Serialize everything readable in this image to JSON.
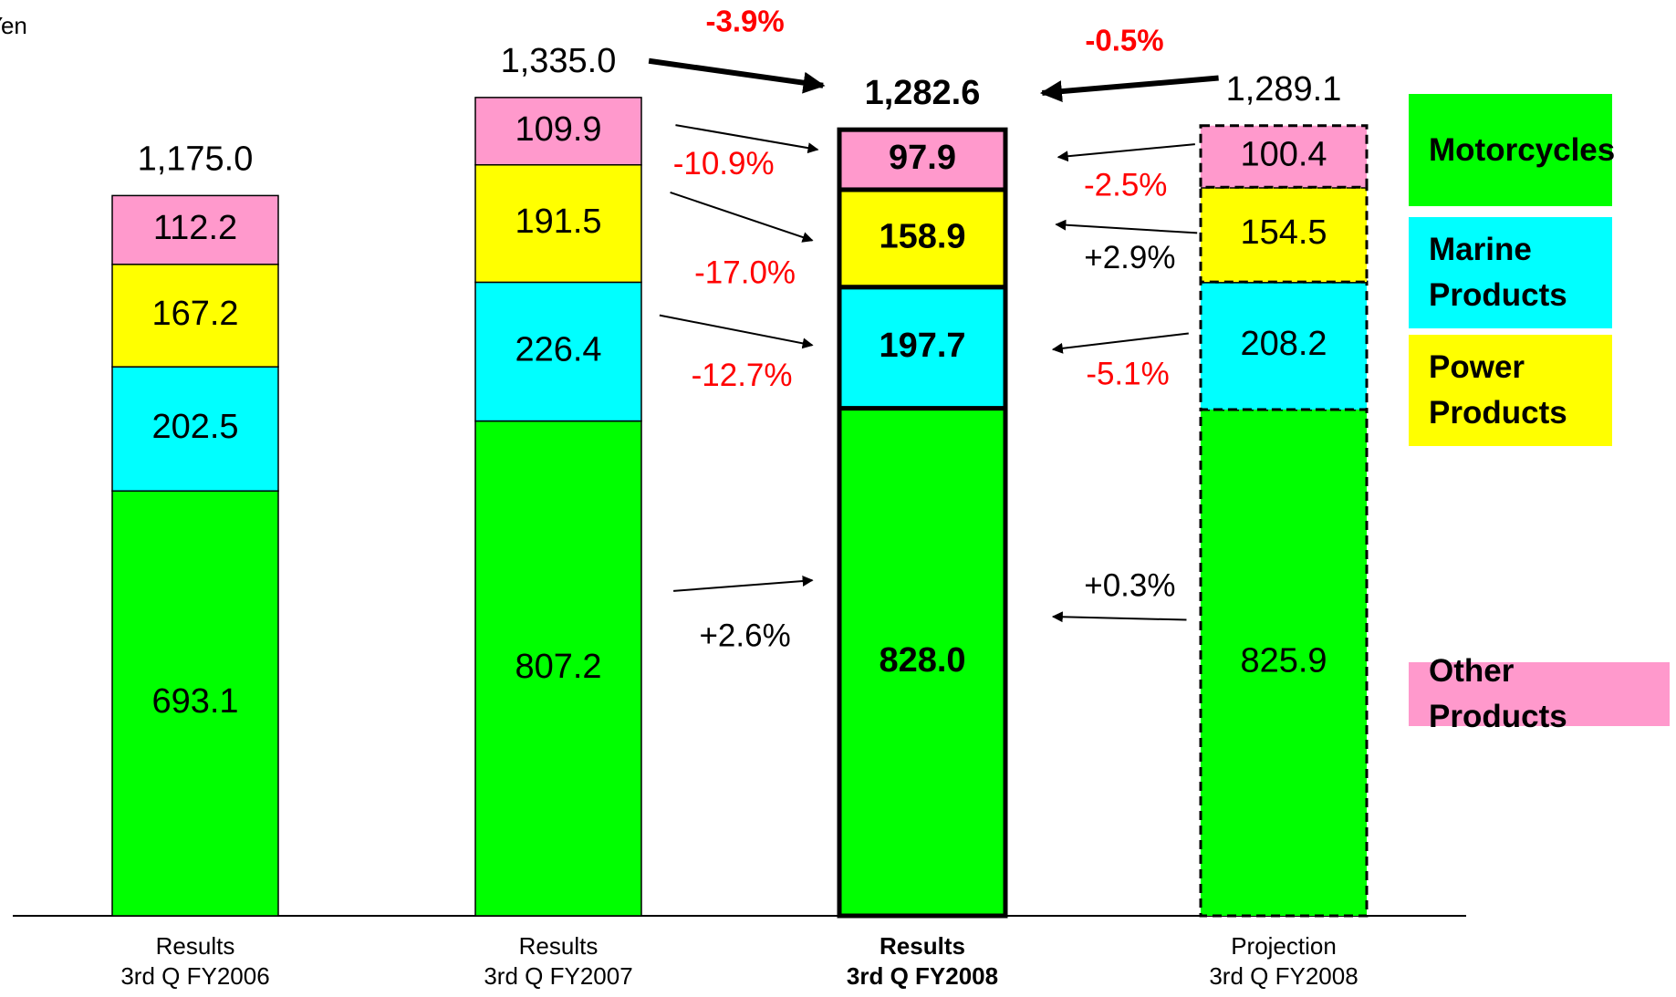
{
  "chart_data": {
    "type": "stacked_bar",
    "unit": "Yen",
    "categories": [
      [
        "Results",
        "3rd Q FY2006"
      ],
      [
        "Results",
        "3rd Q FY2007"
      ],
      [
        "Results",
        "3rd Q FY2008"
      ],
      [
        "Projection",
        "3rd Q FY2008"
      ]
    ],
    "bar_styles": [
      "plain",
      "plain",
      "bold",
      "dashed"
    ],
    "series": [
      {
        "name": "Motorcycles",
        "color": "#00ff00",
        "values": [
          693.1,
          807.2,
          828.0,
          825.9
        ],
        "value_labels": [
          "693.1",
          "807.2",
          "828.0",
          "825.9"
        ]
      },
      {
        "name": "Marine Products",
        "color": "#00ffff",
        "values": [
          202.5,
          226.4,
          197.7,
          208.2
        ],
        "value_labels": [
          "202.5",
          "226.4",
          "197.7",
          "208.2"
        ]
      },
      {
        "name": "Power Products",
        "color": "#ffff00",
        "values": [
          167.2,
          191.5,
          158.9,
          154.5
        ],
        "value_labels": [
          "167.2",
          "191.5",
          "158.9",
          "154.5"
        ]
      },
      {
        "name": "Other Products",
        "color": "#ff99cc",
        "values": [
          112.2,
          109.9,
          97.9,
          100.4
        ],
        "value_labels": [
          "112.2",
          "109.9",
          "97.9",
          "100.4"
        ]
      }
    ],
    "totals": {
      "values": [
        1175.0,
        1335.0,
        1282.6,
        1289.1
      ],
      "value_labels": [
        "1,175.0",
        "1,335.0",
        "1,282.6",
        "1,289.1"
      ]
    },
    "changes_vs_prior": [
      {
        "value": 2.6,
        "label": "+2.6%"
      },
      {
        "value": -12.7,
        "label": "-12.7%"
      },
      {
        "value": -17.0,
        "label": "-17.0%"
      },
      {
        "value": -10.9,
        "label": "-10.9%"
      }
    ],
    "changes_vs_projection": [
      {
        "value": 0.3,
        "label": "+0.3%"
      },
      {
        "value": -5.1,
        "label": "-5.1%"
      },
      {
        "value": 2.9,
        "label": "+2.9%"
      },
      {
        "value": -2.5,
        "label": "-2.5%"
      }
    ],
    "total_change_vs_prior": {
      "value": -3.9,
      "label": "-3.9%"
    },
    "total_change_vs_projection": {
      "value": -0.5,
      "label": "-0.5%"
    }
  }
}
